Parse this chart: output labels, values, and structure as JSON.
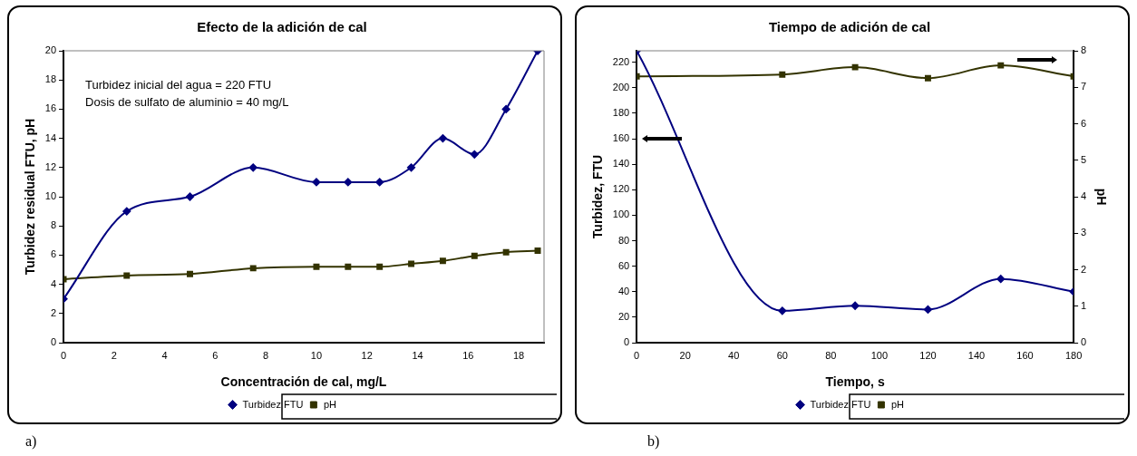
{
  "chart_data": [
    {
      "type": "line",
      "title": "Efecto de la adición de cal",
      "xlabel": "Concentración de cal, mg/L",
      "ylabel": "Turbidez residual FTU, pH",
      "x": [
        0,
        2.5,
        5,
        7.5,
        10,
        11.25,
        12.5,
        13.75,
        15,
        16.25,
        17.5,
        18.75
      ],
      "series": [
        {
          "name": "Turbidez FTU",
          "color": "#000080",
          "marker": "diamond",
          "values": [
            3,
            9,
            10,
            12,
            11,
            11,
            11,
            12,
            14,
            12.9,
            16,
            20
          ]
        },
        {
          "name": "pH",
          "color": "#333300",
          "marker": "square",
          "values": [
            4.35,
            4.6,
            4.7,
            5.1,
            5.2,
            5.2,
            5.2,
            5.4,
            5.6,
            5.95,
            6.2,
            6.3
          ]
        }
      ],
      "xlim": [
        0,
        19
      ],
      "xticks": [
        0,
        2,
        4,
        6,
        8,
        10,
        12,
        14,
        16,
        18
      ],
      "ylim": [
        0,
        20
      ],
      "yticks": [
        0,
        2,
        4,
        6,
        8,
        10,
        12,
        14,
        16,
        18,
        20
      ],
      "grid": false,
      "legend": "bottom",
      "annotations": [
        "Turbidez inicial del agua = 220 FTU",
        "Dosis de sulfato de aluminio = 40 mg/L",
        "a)"
      ]
    },
    {
      "type": "line",
      "title": "Tiempo de adición de cal",
      "xlabel": "Tiempo, s",
      "ylabel": "Turbidez, FTU",
      "y2label": "pH",
      "x": [
        0,
        60,
        90,
        120,
        150,
        180
      ],
      "series": [
        {
          "name": "Turbidez FTU",
          "color": "#000080",
          "marker": "diamond",
          "values": [
            229,
            25,
            29,
            26,
            50,
            40
          ]
        },
        {
          "name": "pH",
          "color": "#333300",
          "marker": "square",
          "axis": "y2",
          "values": [
            7.3,
            7.35,
            7.55,
            7.25,
            7.6,
            7.3
          ]
        }
      ],
      "xlim": [
        0,
        180
      ],
      "xticks": [
        0,
        20,
        40,
        60,
        80,
        100,
        120,
        140,
        160,
        180
      ],
      "ylim": [
        0,
        229
      ],
      "yticks": [
        0,
        20,
        40,
        60,
        80,
        100,
        120,
        140,
        160,
        180,
        200,
        220
      ],
      "y2lim": [
        0,
        8
      ],
      "y2ticks": [
        0,
        1,
        2,
        3,
        4,
        5,
        6,
        7,
        8
      ],
      "grid": false,
      "legend": "bottom",
      "annotations": [
        "b)"
      ]
    }
  ]
}
